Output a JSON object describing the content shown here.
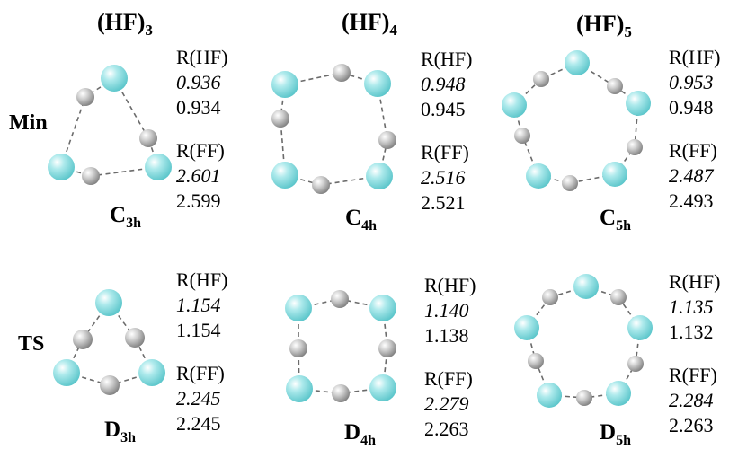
{
  "columns": [
    {
      "base": "(HF)",
      "sub": "3"
    },
    {
      "base": "(HF)",
      "sub": "4"
    },
    {
      "base": "(HF)",
      "sub": "5"
    }
  ],
  "rows": [
    "Min",
    "TS"
  ],
  "panels": [
    {
      "row": "Min",
      "cluster": "(HF)3",
      "sym_base": "C",
      "sym_sub": "3h",
      "rhf_label": "R(HF)",
      "rhf_italic": "0.936",
      "rhf_plain": "0.934",
      "rff_label": "R(FF)",
      "rff_italic": "2.601",
      "rff_plain": "2.599"
    },
    {
      "row": "Min",
      "cluster": "(HF)4",
      "sym_base": "C",
      "sym_sub": "4h",
      "rhf_label": "R(HF)",
      "rhf_italic": "0.948",
      "rhf_plain": "0.945",
      "rff_label": "R(FF)",
      "rff_italic": "2.516",
      "rff_plain": "2.521"
    },
    {
      "row": "Min",
      "cluster": "(HF)5",
      "sym_base": "C",
      "sym_sub": "5h",
      "rhf_label": "R(HF)",
      "rhf_italic": "0.953",
      "rhf_plain": "0.948",
      "rff_label": "R(FF)",
      "rff_italic": "2.487",
      "rff_plain": "2.493"
    },
    {
      "row": "TS",
      "cluster": "(HF)3",
      "sym_base": "D",
      "sym_sub": "3h",
      "rhf_label": "R(HF)",
      "rhf_italic": "1.154",
      "rhf_plain": "1.154",
      "rff_label": "R(FF)",
      "rff_italic": "2.245",
      "rff_plain": "2.245"
    },
    {
      "row": "TS",
      "cluster": "(HF)4",
      "sym_base": "D",
      "sym_sub": "4h",
      "rhf_label": "R(HF)",
      "rhf_italic": "1.140",
      "rhf_plain": "1.138",
      "rff_label": "R(FF)",
      "rff_italic": "2.279",
      "rff_plain": "2.263"
    },
    {
      "row": "TS",
      "cluster": "(HF)5",
      "sym_base": "D",
      "sym_sub": "5h",
      "rhf_label": "R(HF)",
      "rhf_italic": "1.135",
      "rhf_plain": "1.132",
      "rff_label": "R(FF)",
      "rff_italic": "2.284",
      "rff_plain": "2.263"
    }
  ],
  "atoms": {
    "fluorine": {
      "color": "#8fdde0"
    },
    "hydrogen": {
      "color": "#bdbdbd"
    }
  }
}
